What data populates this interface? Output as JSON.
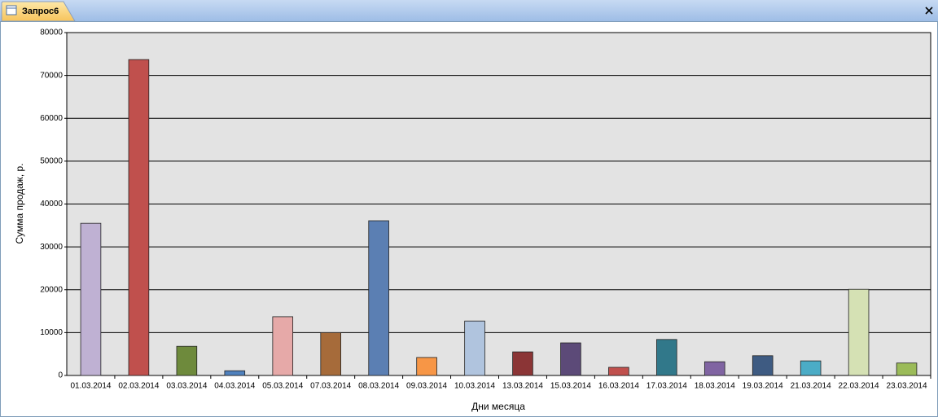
{
  "tab": {
    "title": "Запрос6"
  },
  "chart_data": {
    "type": "bar",
    "ylabel": "Сумма продаж, р.",
    "xlabel": "Дни месяца",
    "categories": [
      "01.03.2014",
      "02.03.2014",
      "03.03.2014",
      "04.03.2014",
      "05.03.2014",
      "07.03.2014",
      "08.03.2014",
      "09.03.2014",
      "10.03.2014",
      "13.03.2014",
      "15.03.2014",
      "16.03.2014",
      "17.03.2014",
      "18.03.2014",
      "19.03.2014",
      "21.03.2014",
      "22.03.2014",
      "23.03.2014"
    ],
    "values": [
      35500,
      73700,
      6800,
      1100,
      13700,
      10000,
      36100,
      4200,
      12700,
      5500,
      7600,
      1900,
      8400,
      3200,
      4600,
      3400,
      20100,
      2900
    ],
    "colors": [
      "#bfb1d3",
      "#c0504d",
      "#6e8a3c",
      "#4f81bd",
      "#e6a9a8",
      "#a66b3a",
      "#5b7fb3",
      "#f79646",
      "#b0c4de",
      "#8b3536",
      "#5c4a78",
      "#c0504d",
      "#31788a",
      "#8064a2",
      "#3e5b82",
      "#4bacc6",
      "#d5e1b4",
      "#9bbb59"
    ],
    "ylim": [
      0,
      80000
    ],
    "yticks": [
      0,
      10000,
      20000,
      30000,
      40000,
      50000,
      60000,
      70000,
      80000
    ],
    "grid": true
  }
}
